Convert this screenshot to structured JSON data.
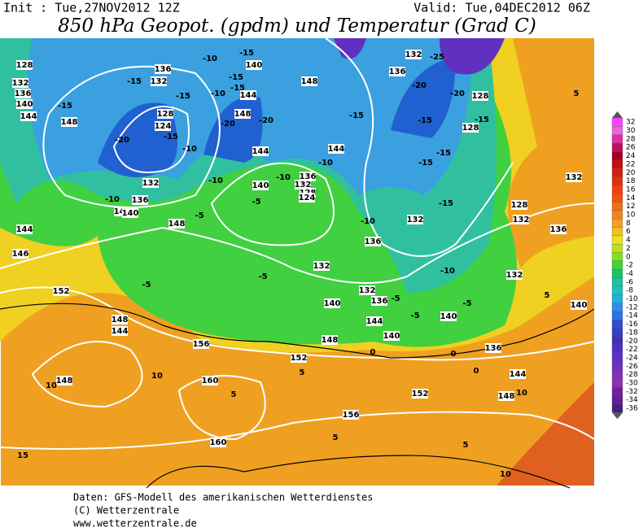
{
  "header": {
    "init": "Init : Tue,27NOV2012 12Z",
    "valid": "Valid: Tue,04DEC2012 06Z",
    "title": "850 hPa Geopot. (gpdm) und Temperatur (Grad C)"
  },
  "map": {
    "labels": [
      "128",
      "132",
      "136",
      "140",
      "144",
      "148",
      "-15",
      "-20",
      "-15",
      "128",
      "124",
      "136",
      "132",
      "-15",
      "-15",
      "-10",
      "-10",
      "-15",
      "140",
      "-15",
      "-15",
      "-10",
      "144",
      "148",
      "-20",
      "-20",
      "144",
      "148",
      "-15",
      "144",
      "-10",
      "-10",
      "136",
      "132",
      "128",
      "124",
      "-10",
      "140",
      "-5",
      "-5",
      "148",
      "144",
      "140",
      "136",
      "-10",
      "132",
      "132",
      "-25",
      "136",
      "-20",
      "-20",
      "128",
      "-15",
      "128",
      "-15",
      "-15",
      "-15",
      "132",
      "-15",
      "128",
      "132",
      "136",
      "-10",
      "136",
      "132",
      "-10",
      "132",
      "-5",
      "-5",
      "152",
      "146",
      "144",
      "148",
      "144",
      "156",
      "152",
      "148",
      "144",
      "140",
      "136",
      "132",
      "140",
      "-5",
      "-5",
      "140",
      "-5",
      "136",
      "132",
      "140",
      "144",
      "148",
      "152",
      "156",
      "160",
      "160",
      "148",
      "10",
      "10",
      "5",
      "0",
      "0",
      "0",
      "10",
      "15",
      "5",
      "5",
      "5",
      "5",
      "5",
      "10"
    ]
  },
  "colorbar": {
    "labels": [
      32,
      30,
      28,
      26,
      24,
      22,
      20,
      18,
      16,
      14,
      12,
      10,
      8,
      6,
      4,
      2,
      0,
      -2,
      -4,
      -6,
      -8,
      -10,
      -12,
      -14,
      -16,
      -18,
      -20,
      -22,
      -24,
      -26,
      -28,
      -30,
      -32,
      -34,
      -36
    ]
  },
  "footer": {
    "lines": [
      "Daten: GFS-Modell des amerikanischen Wetterdienstes",
      "(C) Wetterzentrale",
      "www.wetterzentrale.de"
    ]
  }
}
